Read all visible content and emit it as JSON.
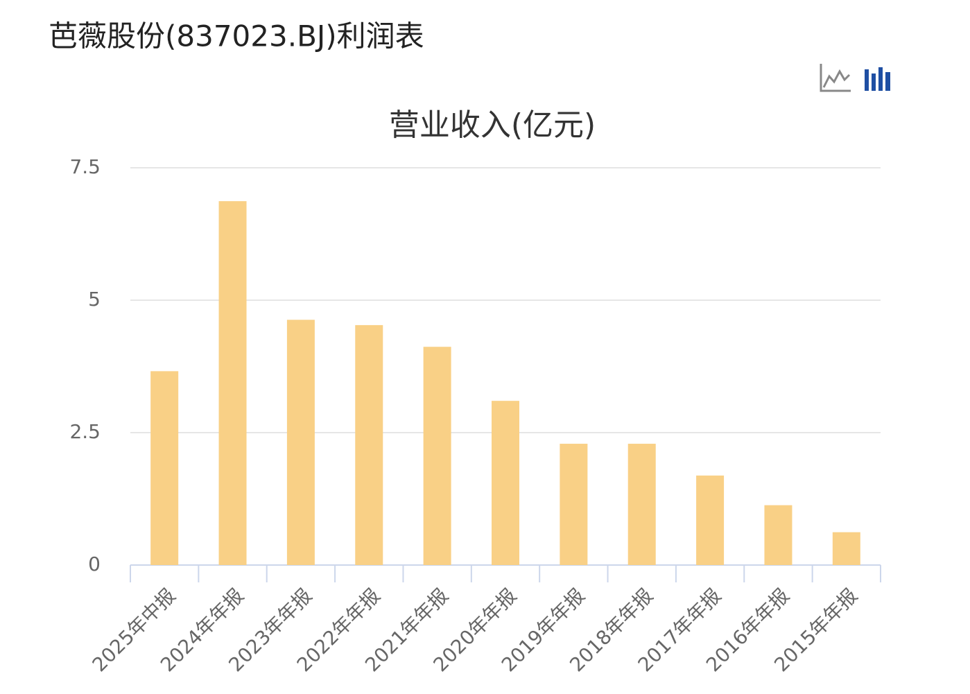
{
  "page_title": "芭薇股份(837023.BJ)利润表",
  "chart_data": {
    "type": "bar",
    "title": "营业收入(亿元)",
    "categories": [
      "2025年中报",
      "2024年年报",
      "2023年年报",
      "2022年年报",
      "2021年年报",
      "2020年年报",
      "2019年年报",
      "2018年年报",
      "2017年年报",
      "2016年年报",
      "2015年年报"
    ],
    "values": [
      3.66,
      6.87,
      4.63,
      4.53,
      4.12,
      3.1,
      2.29,
      2.29,
      1.69,
      1.13,
      0.62
    ],
    "color": "#f9d086",
    "ylim": [
      0,
      7.5
    ],
    "yticks": [
      0,
      2.5,
      5,
      7.5
    ],
    "grid": true
  }
}
